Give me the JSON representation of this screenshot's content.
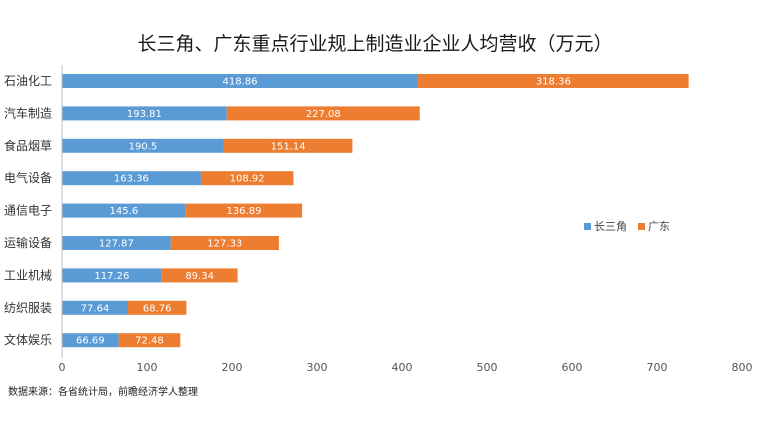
{
  "chart_data": {
    "type": "bar",
    "orientation": "horizontal",
    "stacked": true,
    "title": "长三角、广东重点行业规上制造业企业人均营收（万元）",
    "categories": [
      "石油化工",
      "汽车制造",
      "食品烟草",
      "电气设备",
      "通信电子",
      "运输设备",
      "工业机械",
      "纺织服装",
      "文体娱乐"
    ],
    "series": [
      {
        "name": "长三角",
        "color": "#5b9bd5",
        "values": [
          418.86,
          193.81,
          190.5,
          163.36,
          145.6,
          127.87,
          117.26,
          77.64,
          66.69
        ]
      },
      {
        "name": "广东",
        "color": "#ed7d31",
        "values": [
          318.36,
          227.08,
          151.14,
          108.92,
          136.89,
          127.33,
          89.34,
          68.76,
          72.48
        ]
      }
    ],
    "value_labels": [
      [
        "418.86",
        "193.81",
        "190.5",
        "163.36",
        "145.6",
        "127.87",
        "117.26",
        "77.64",
        "66.69"
      ],
      [
        "318.36",
        "227.08",
        "151.14",
        "108.92",
        "136.89",
        "127.33",
        "89.34",
        "68.76",
        "72.48"
      ]
    ],
    "xlim": [
      0,
      800
    ],
    "xticks": [
      0,
      100,
      200,
      300,
      400,
      500,
      600,
      700,
      800
    ],
    "legend_position": "right",
    "grid": false
  },
  "source_note": "数据来源：各省统计局，前瞻经济学人整理"
}
